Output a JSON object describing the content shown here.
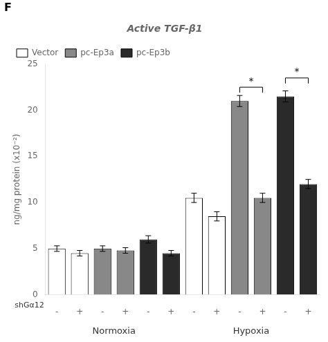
{
  "chart_data": {
    "type": "bar",
    "title": "Active TGF-β1",
    "ylabel": "ng/mg protein (x10⁻²)",
    "xlabel": "shGα12",
    "panel_label": "F",
    "categories": [
      "-",
      "+",
      "-",
      "+",
      "-",
      "+",
      "-",
      "+",
      "-",
      "+",
      "-",
      "+"
    ],
    "groups": [
      {
        "label": "Normoxia",
        "from": 0,
        "to": 5
      },
      {
        "label": "Hypoxia",
        "from": 6,
        "to": 11
      }
    ],
    "border_color": "black",
    "series": [
      {
        "name": "Vector",
        "color": "white",
        "values": [
          5.0,
          4.5,
          null,
          null,
          null,
          null,
          10.5,
          8.5,
          null,
          null,
          null,
          null
        ],
        "errors": [
          0.3,
          0.3,
          null,
          null,
          null,
          null,
          0.5,
          0.5,
          null,
          null,
          null,
          null
        ]
      },
      {
        "name": "pc-Ep3a",
        "color": "#888888",
        "values": [
          null,
          null,
          5.0,
          4.8,
          null,
          null,
          null,
          null,
          21.0,
          10.5,
          null,
          null
        ],
        "errors": [
          null,
          null,
          0.3,
          0.3,
          null,
          null,
          null,
          null,
          0.6,
          0.5,
          null,
          null
        ]
      },
      {
        "name": "pc-Ep3b",
        "color": "#2a2a2a",
        "values": [
          null,
          null,
          null,
          null,
          6.0,
          4.5,
          null,
          null,
          null,
          null,
          21.5,
          12.0
        ],
        "errors": [
          null,
          null,
          null,
          null,
          0.4,
          0.3,
          null,
          null,
          null,
          null,
          0.6,
          0.5
        ]
      }
    ],
    "significance": [
      {
        "from": 8,
        "to": 9,
        "y": 22.5,
        "label": "*"
      },
      {
        "from": 10,
        "to": 11,
        "y": 23.5,
        "label": "*"
      }
    ],
    "ylim": [
      0,
      25
    ],
    "yticks": [
      0,
      5,
      10,
      15,
      20,
      25
    ],
    "grid": false,
    "legend": "upper left"
  }
}
